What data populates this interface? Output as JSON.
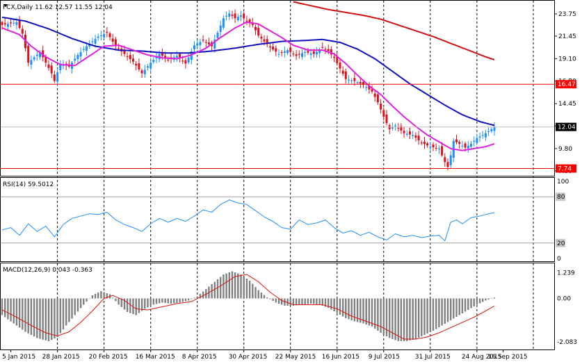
{
  "header": {
    "symbol_line": "FCX,Daily  11.62 12.57 11.55 12.04",
    "rsi_line": "RSI(14) 59.5012",
    "macd_line": "MACD(12,26,9) 0.043 -0.363"
  },
  "colors": {
    "bull_candle": "#1e90ff",
    "bear_candle": "#e0101a",
    "ma_fast": "#e020e0",
    "ma_mid": "#1010c0",
    "ma_slow": "#d01010",
    "rsi_line": "#1e90ff",
    "macd_hist": "#808080",
    "macd_signal": "#e01010",
    "hline": "#ff0000",
    "current_price_bg": "#000000"
  },
  "chart_data": [
    {
      "type": "candlestick",
      "title": "FCX,Daily",
      "ohlc_last": {
        "open": 11.62,
        "high": 12.57,
        "low": 11.55,
        "close": 12.04
      },
      "price_axis_ticks": [
        "23.75",
        "21.45",
        "19.10",
        "16.80",
        "14.45",
        "12.15",
        "9.80",
        "7.50"
      ],
      "ylim": [
        7.2,
        24.9
      ],
      "horizontal_lines": [
        {
          "value": 16.47,
          "label": "16.47"
        },
        {
          "value": 7.74,
          "label": "7.74"
        }
      ],
      "current_price": {
        "value": 12.04,
        "label": "12.04"
      },
      "x_labels": [
        "5 Jan 2015",
        "28 Jan 2015",
        "20 Feb 2015",
        "16 Mar 2015",
        "8 Apr 2015",
        "30 Apr 2015",
        "22 May 2015",
        "16 Jun 2015",
        "9 Jul 2015",
        "31 Jul 2015",
        "24 Aug 2015",
        "16 Sep 2015"
      ],
      "close_keypoints": [
        [
          0,
          22.6
        ],
        [
          5,
          22.9
        ],
        [
          7,
          21.7
        ],
        [
          9,
          18.7
        ],
        [
          13,
          19.8
        ],
        [
          17,
          17.6
        ],
        [
          18,
          16.8
        ],
        [
          20,
          18.6
        ],
        [
          23,
          18.3
        ],
        [
          26,
          19.5
        ],
        [
          29,
          20.4
        ],
        [
          33,
          21.4
        ],
        [
          36,
          21.8
        ],
        [
          39,
          20.4
        ],
        [
          42,
          19.6
        ],
        [
          45,
          18.8
        ],
        [
          48,
          17.6
        ],
        [
          51,
          18.7
        ],
        [
          54,
          19.6
        ],
        [
          57,
          19.0
        ],
        [
          60,
          19.4
        ],
        [
          63,
          18.6
        ],
        [
          66,
          20.5
        ],
        [
          69,
          21.0
        ],
        [
          72,
          20.4
        ],
        [
          74,
          21.8
        ],
        [
          76,
          23.3
        ],
        [
          78,
          23.8
        ],
        [
          80,
          23.3
        ],
        [
          82,
          23.6
        ],
        [
          84,
          23.0
        ],
        [
          86,
          22.6
        ],
        [
          88,
          21.5
        ],
        [
          90,
          20.9
        ],
        [
          92,
          20.3
        ],
        [
          95,
          19.6
        ],
        [
          98,
          20.0
        ],
        [
          101,
          19.4
        ],
        [
          104,
          19.8
        ],
        [
          107,
          19.6
        ],
        [
          110,
          20.3
        ],
        [
          112,
          19.9
        ],
        [
          114,
          19.2
        ],
        [
          116,
          18.1
        ],
        [
          118,
          17.0
        ],
        [
          121,
          16.8
        ],
        [
          124,
          16.4
        ],
        [
          127,
          15.7
        ],
        [
          129,
          14.6
        ],
        [
          131,
          13.1
        ],
        [
          133,
          11.8
        ],
        [
          135,
          12.2
        ],
        [
          138,
          11.4
        ],
        [
          141,
          11.2
        ],
        [
          144,
          10.4
        ],
        [
          147,
          10.0
        ],
        [
          150,
          9.8
        ],
        [
          152,
          8.4
        ],
        [
          153,
          7.9
        ],
        [
          154,
          9.1
        ],
        [
          155,
          10.6
        ],
        [
          157,
          10.3
        ],
        [
          159,
          9.9
        ],
        [
          161,
          10.3
        ],
        [
          163,
          10.9
        ],
        [
          165,
          11.2
        ],
        [
          167,
          11.6
        ],
        [
          169,
          12.04
        ]
      ],
      "ma_fast_keypoints": [
        [
          0,
          22.3
        ],
        [
          6,
          21.6
        ],
        [
          10,
          20.4
        ],
        [
          15,
          19.3
        ],
        [
          20,
          18.5
        ],
        [
          25,
          18.4
        ],
        [
          30,
          19.4
        ],
        [
          35,
          20.4
        ],
        [
          40,
          20.5
        ],
        [
          45,
          20.0
        ],
        [
          50,
          19.5
        ],
        [
          55,
          19.2
        ],
        [
          60,
          19.1
        ],
        [
          65,
          19.5
        ],
        [
          70,
          20.2
        ],
        [
          75,
          21.3
        ],
        [
          80,
          22.3
        ],
        [
          84,
          22.9
        ],
        [
          88,
          22.7
        ],
        [
          92,
          22.0
        ],
        [
          96,
          21.3
        ],
        [
          100,
          20.5
        ],
        [
          105,
          20.0
        ],
        [
          110,
          20.0
        ],
        [
          114,
          19.6
        ],
        [
          118,
          18.6
        ],
        [
          122,
          17.4
        ],
        [
          126,
          16.3
        ],
        [
          130,
          15.4
        ],
        [
          134,
          14.2
        ],
        [
          138,
          13.1
        ],
        [
          142,
          12.1
        ],
        [
          146,
          11.2
        ],
        [
          150,
          10.5
        ],
        [
          154,
          9.8
        ],
        [
          158,
          9.6
        ],
        [
          162,
          9.8
        ],
        [
          166,
          10.0
        ],
        [
          169,
          10.3
        ]
      ],
      "ma_mid_keypoints": [
        [
          0,
          23.4
        ],
        [
          8,
          23.0
        ],
        [
          16,
          22.2
        ],
        [
          24,
          21.2
        ],
        [
          32,
          20.4
        ],
        [
          40,
          20.0
        ],
        [
          48,
          19.9
        ],
        [
          56,
          19.7
        ],
        [
          64,
          19.7
        ],
        [
          72,
          19.9
        ],
        [
          80,
          20.2
        ],
        [
          88,
          20.6
        ],
        [
          96,
          20.9
        ],
        [
          104,
          21.0
        ],
        [
          110,
          21.1
        ],
        [
          116,
          20.8
        ],
        [
          122,
          20.1
        ],
        [
          128,
          19.1
        ],
        [
          134,
          17.8
        ],
        [
          140,
          16.5
        ],
        [
          146,
          15.4
        ],
        [
          152,
          14.3
        ],
        [
          158,
          13.3
        ],
        [
          164,
          12.6
        ],
        [
          169,
          12.2
        ]
      ],
      "ma_slow_keypoints": [
        [
          100,
          25.0
        ],
        [
          106,
          24.6
        ],
        [
          112,
          24.2
        ],
        [
          118,
          23.9
        ],
        [
          124,
          23.6
        ],
        [
          130,
          23.2
        ],
        [
          136,
          22.6
        ],
        [
          142,
          22.0
        ],
        [
          148,
          21.4
        ],
        [
          154,
          20.7
        ],
        [
          160,
          20.0
        ],
        [
          166,
          19.3
        ],
        [
          169,
          19.0
        ]
      ]
    },
    {
      "type": "line",
      "title": "RSI(14)",
      "series": [
        {
          "name": "RSI(14)",
          "last": 59.5012
        }
      ],
      "axis_ticks": [
        "100",
        "80",
        "20",
        "0"
      ],
      "levels": [
        80,
        20
      ],
      "ylim": [
        0,
        100
      ],
      "keypoints": [
        [
          0,
          37
        ],
        [
          3,
          40
        ],
        [
          6,
          30
        ],
        [
          9,
          45
        ],
        [
          12,
          35
        ],
        [
          15,
          42
        ],
        [
          18,
          28
        ],
        [
          21,
          44
        ],
        [
          24,
          52
        ],
        [
          27,
          55
        ],
        [
          30,
          58
        ],
        [
          33,
          57
        ],
        [
          36,
          60
        ],
        [
          39,
          50
        ],
        [
          42,
          44
        ],
        [
          45,
          40
        ],
        [
          48,
          35
        ],
        [
          51,
          45
        ],
        [
          54,
          52
        ],
        [
          57,
          47
        ],
        [
          60,
          52
        ],
        [
          63,
          48
        ],
        [
          66,
          55
        ],
        [
          69,
          63
        ],
        [
          72,
          60
        ],
        [
          75,
          70
        ],
        [
          78,
          76
        ],
        [
          81,
          72
        ],
        [
          84,
          70
        ],
        [
          87,
          62
        ],
        [
          90,
          54
        ],
        [
          93,
          48
        ],
        [
          96,
          40
        ],
        [
          99,
          38
        ],
        [
          102,
          50
        ],
        [
          105,
          44
        ],
        [
          108,
          46
        ],
        [
          111,
          50
        ],
        [
          114,
          40
        ],
        [
          117,
          33
        ],
        [
          120,
          36
        ],
        [
          123,
          30
        ],
        [
          126,
          34
        ],
        [
          129,
          28
        ],
        [
          132,
          24
        ],
        [
          135,
          32
        ],
        [
          138,
          28
        ],
        [
          141,
          30
        ],
        [
          144,
          27
        ],
        [
          147,
          29
        ],
        [
          150,
          30
        ],
        [
          152,
          23
        ],
        [
          154,
          47
        ],
        [
          156,
          50
        ],
        [
          158,
          45
        ],
        [
          161,
          53
        ],
        [
          164,
          55
        ],
        [
          166,
          57
        ],
        [
          169,
          59.5
        ]
      ]
    },
    {
      "type": "bar",
      "title": "MACD(12,26,9)",
      "series": [
        {
          "name": "MACD",
          "last": 0.043
        },
        {
          "name": "Signal",
          "last": -0.363
        }
      ],
      "axis_ticks": [
        "1.239",
        "0.00",
        "-2.083"
      ],
      "ylim": [
        -2.25,
        1.45
      ],
      "macd_keypoints": [
        [
          0,
          -0.8
        ],
        [
          4,
          -1.2
        ],
        [
          8,
          -1.6
        ],
        [
          12,
          -1.9
        ],
        [
          16,
          -2.05
        ],
        [
          19,
          -1.85
        ],
        [
          22,
          -1.3
        ],
        [
          25,
          -0.8
        ],
        [
          28,
          -0.3
        ],
        [
          31,
          0.15
        ],
        [
          34,
          0.35
        ],
        [
          37,
          0.2
        ],
        [
          40,
          -0.3
        ],
        [
          43,
          -0.65
        ],
        [
          46,
          -0.8
        ],
        [
          49,
          -0.5
        ],
        [
          52,
          -0.3
        ],
        [
          55,
          -0.2
        ],
        [
          58,
          -0.25
        ],
        [
          61,
          -0.2
        ],
        [
          64,
          -0.1
        ],
        [
          67,
          0.1
        ],
        [
          70,
          0.45
        ],
        [
          73,
          0.8
        ],
        [
          76,
          1.15
        ],
        [
          79,
          1.3
        ],
        [
          82,
          1.15
        ],
        [
          85,
          0.85
        ],
        [
          88,
          0.4
        ],
        [
          91,
          0.05
        ],
        [
          94,
          -0.2
        ],
        [
          97,
          -0.35
        ],
        [
          100,
          -0.35
        ],
        [
          103,
          -0.3
        ],
        [
          106,
          -0.25
        ],
        [
          109,
          -0.3
        ],
        [
          112,
          -0.45
        ],
        [
          115,
          -0.7
        ],
        [
          118,
          -0.95
        ],
        [
          121,
          -1.1
        ],
        [
          124,
          -1.2
        ],
        [
          127,
          -1.35
        ],
        [
          130,
          -1.65
        ],
        [
          133,
          -1.9
        ],
        [
          136,
          -2.05
        ],
        [
          139,
          -2.05
        ],
        [
          142,
          -1.95
        ],
        [
          145,
          -1.75
        ],
        [
          148,
          -1.55
        ],
        [
          151,
          -1.3
        ],
        [
          154,
          -1.05
        ],
        [
          157,
          -0.8
        ],
        [
          160,
          -0.55
        ],
        [
          163,
          -0.3
        ],
        [
          166,
          -0.1
        ],
        [
          169,
          0.043
        ]
      ],
      "signal_keypoints": [
        [
          0,
          -0.55
        ],
        [
          5,
          -0.9
        ],
        [
          10,
          -1.3
        ],
        [
          15,
          -1.65
        ],
        [
          19,
          -1.8
        ],
        [
          23,
          -1.6
        ],
        [
          27,
          -1.15
        ],
        [
          31,
          -0.6
        ],
        [
          35,
          0.0
        ],
        [
          38,
          0.15
        ],
        [
          42,
          -0.1
        ],
        [
          46,
          -0.5
        ],
        [
          50,
          -0.55
        ],
        [
          55,
          -0.4
        ],
        [
          60,
          -0.25
        ],
        [
          65,
          -0.15
        ],
        [
          70,
          0.2
        ],
        [
          75,
          0.6
        ],
        [
          80,
          1.05
        ],
        [
          84,
          1.15
        ],
        [
          88,
          0.8
        ],
        [
          92,
          0.3
        ],
        [
          96,
          -0.1
        ],
        [
          100,
          -0.3
        ],
        [
          105,
          -0.3
        ],
        [
          110,
          -0.3
        ],
        [
          115,
          -0.5
        ],
        [
          120,
          -0.85
        ],
        [
          125,
          -1.1
        ],
        [
          130,
          -1.35
        ],
        [
          134,
          -1.65
        ],
        [
          138,
          -1.95
        ],
        [
          142,
          -1.95
        ],
        [
          146,
          -1.85
        ],
        [
          150,
          -1.65
        ],
        [
          154,
          -1.4
        ],
        [
          158,
          -1.15
        ],
        [
          162,
          -0.9
        ],
        [
          166,
          -0.6
        ],
        [
          169,
          -0.363
        ]
      ]
    }
  ]
}
